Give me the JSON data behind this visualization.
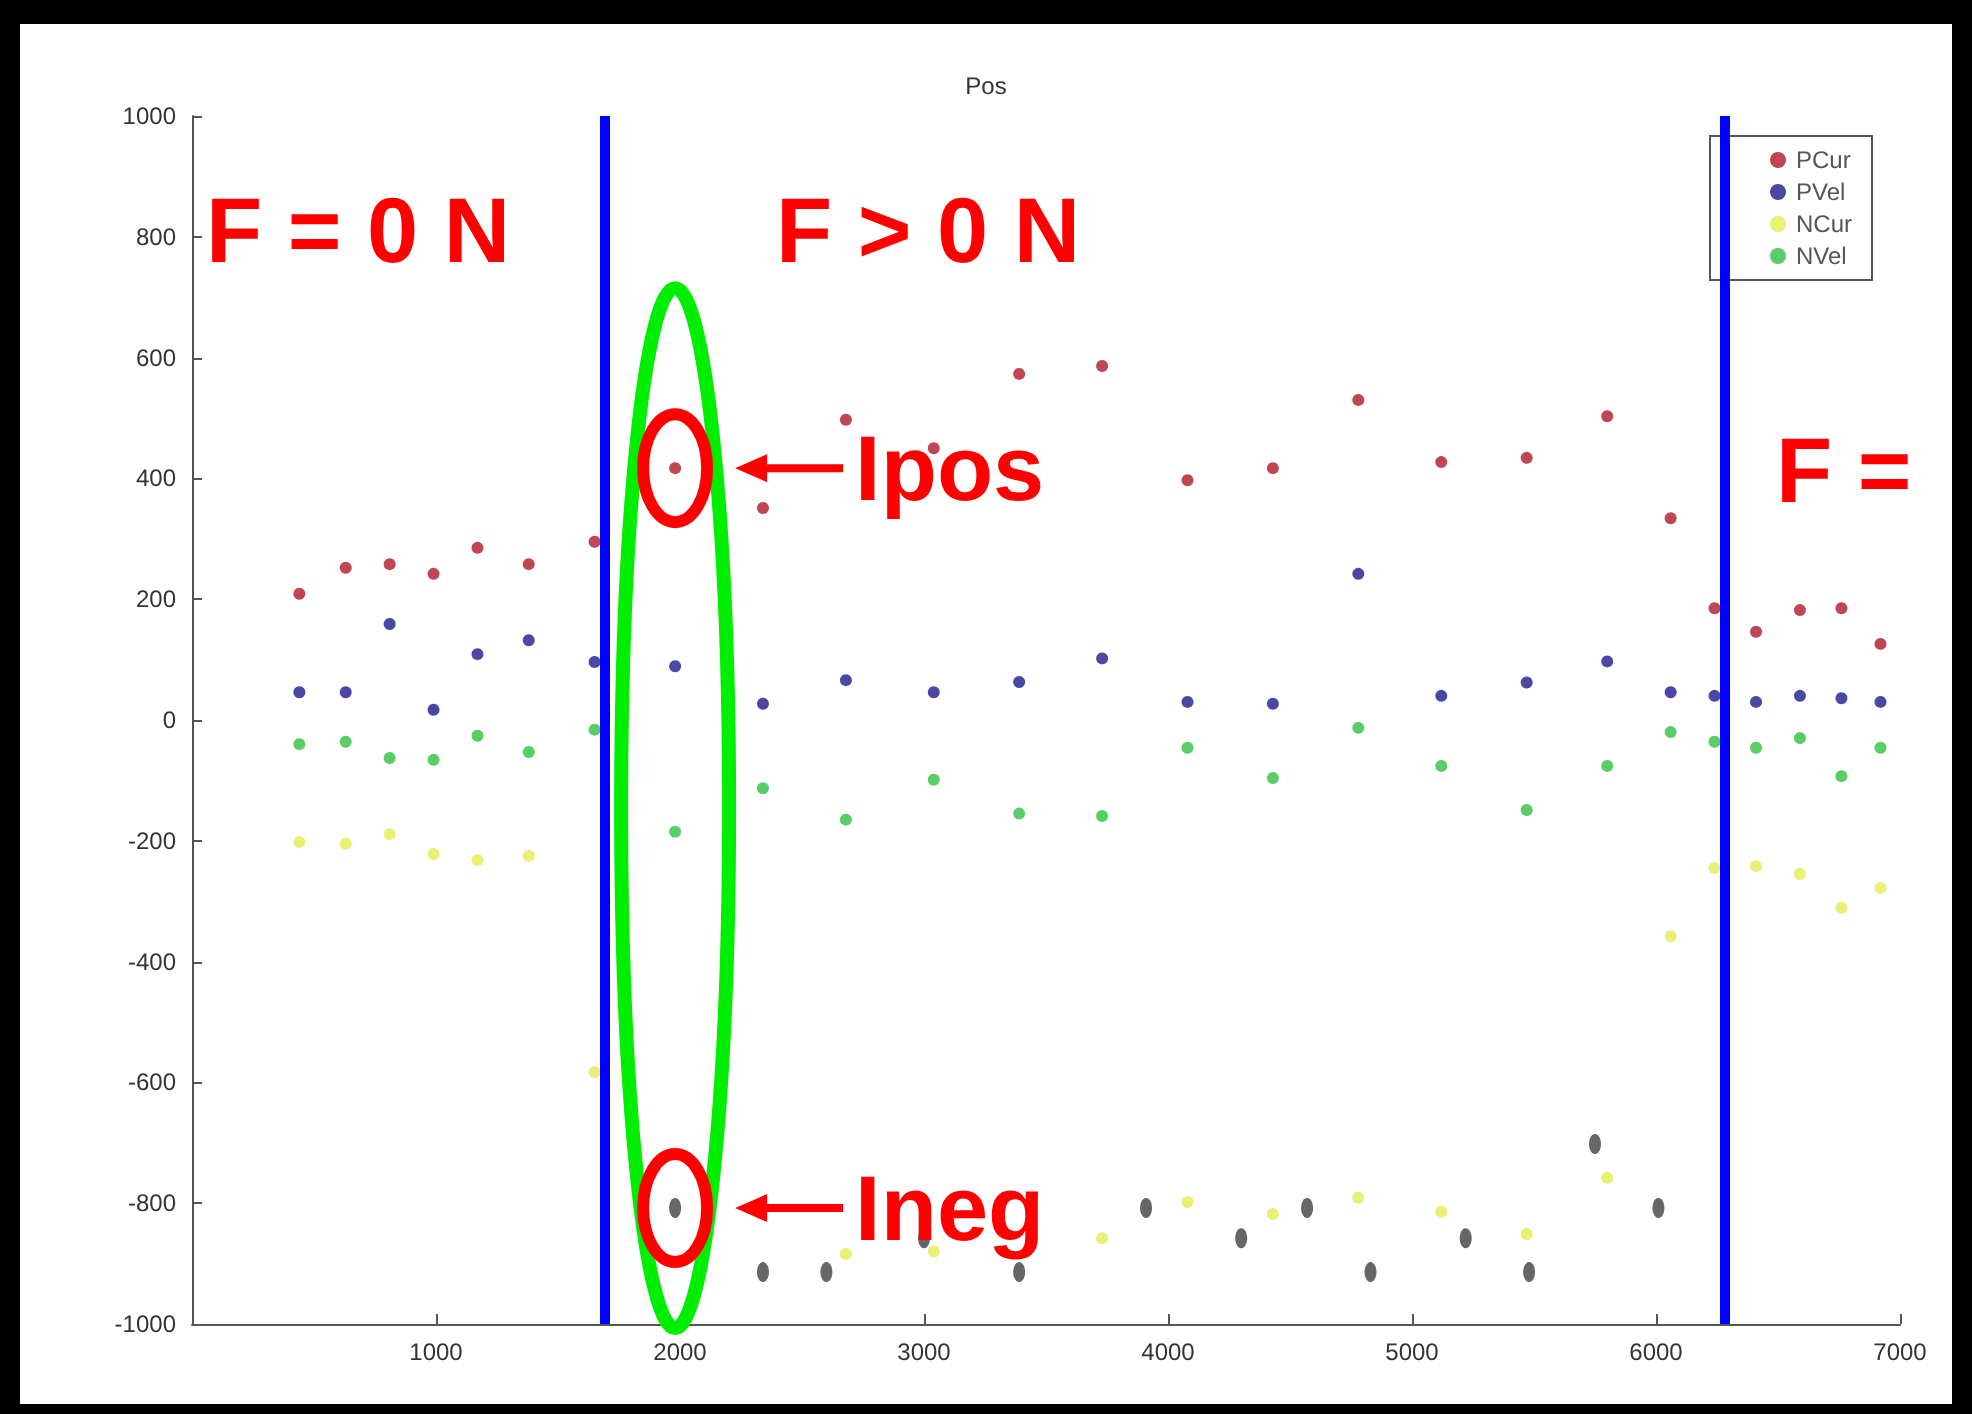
{
  "chart_data": {
    "type": "scatter",
    "title": "Pos",
    "x": [
      440,
      630,
      810,
      990,
      1170,
      1380,
      1650,
      1980,
      2340,
      2680,
      3040,
      3390,
      3730,
      4080,
      4430,
      4780,
      5120,
      5470,
      5800,
      6060,
      6240,
      6410,
      6590,
      6760,
      6920
    ],
    "series": [
      {
        "name": "PCur",
        "color": "#b01828",
        "values": [
          209,
          252,
          258,
          242,
          285,
          258,
          295,
          417,
          351,
          497,
          450,
          573,
          586,
          397,
          417,
          530,
          427,
          434,
          503,
          334,
          185,
          146,
          182,
          185,
          126
        ]
      },
      {
        "name": "PVel",
        "color": "#1c1c8c",
        "values": [
          46,
          46,
          159,
          17,
          109,
          132,
          96,
          89,
          27,
          66,
          46,
          63,
          102,
          30,
          27,
          242,
          40,
          62,
          97,
          46,
          40,
          30,
          40,
          36,
          30
        ]
      },
      {
        "name": "NCur",
        "color": "#e4ec50",
        "values": [
          -202,
          -205,
          -189,
          -222,
          -232,
          -225,
          -583,
          null,
          null,
          -884,
          -880,
          null,
          -858,
          -798,
          -818,
          -791,
          -814,
          -851,
          -758,
          -358,
          -245,
          -242,
          -255,
          -311,
          -278
        ]
      },
      {
        "name": "NVel",
        "color": "#30c040",
        "values": [
          -40,
          -36,
          -63,
          -66,
          -26,
          -53,
          -16,
          -185,
          -113,
          -165,
          -99,
          -155,
          -159,
          -46,
          -96,
          -13,
          -76,
          -149,
          -76,
          -20,
          -36,
          -46,
          -30,
          -93,
          -46
        ]
      },
      {
        "color": "#404040",
        "x": [
          1980,
          2340,
          2600,
          3000,
          3390,
          3910,
          4300,
          4570,
          4830,
          5220,
          5480,
          5750,
          6010
        ],
        "values": [
          -808,
          -914,
          -914,
          -858,
          -914,
          -808,
          -858,
          -808,
          -914,
          -858,
          -914,
          -702,
          -808
        ]
      }
    ],
    "xlim": [
      0,
      7000
    ],
    "xticks": [
      1000,
      2000,
      3000,
      4000,
      5000,
      6000,
      7000
    ],
    "ylim": [
      -1000,
      1000
    ],
    "yticks": [
      -1000,
      -800,
      -600,
      -400,
      -200,
      0,
      200,
      400,
      600,
      800,
      1000
    ],
    "grid": false,
    "legend": "top right",
    "marker": "circle",
    "ref_lines": [
      {
        "axis": "x",
        "value": 1690,
        "color": "#0000ff"
      },
      {
        "axis": "x",
        "value": 6280,
        "color": "#0000ff"
      }
    ],
    "annotations": [
      "F = 0 N",
      "F > 0 N",
      "F =",
      {
        "text": "Ipos",
        "x": 1980,
        "y": 417
      },
      {
        "text": "Ineg",
        "x": 1980,
        "y": -808
      }
    ]
  }
}
